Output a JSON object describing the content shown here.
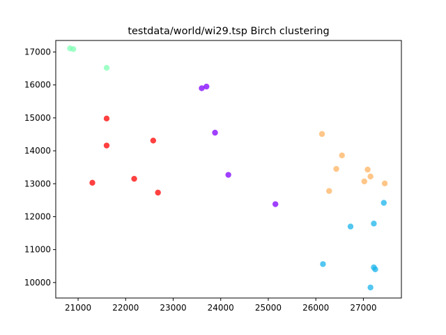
{
  "chart_data": {
    "type": "scatter",
    "title": "testdata/world/wi29.tsp Birch clustering",
    "xlabel": "",
    "ylabel": "",
    "xlim": [
      20530,
      27800
    ],
    "ylim": [
      9530,
      17350
    ],
    "x_ticks": [
      21000,
      22000,
      23000,
      24000,
      25000,
      26000,
      27000
    ],
    "x_tick_labels": [
      "21000",
      "22000",
      "23000",
      "24000",
      "25000",
      "26000",
      "27000"
    ],
    "y_ticks": [
      10000,
      11000,
      12000,
      13000,
      14000,
      15000,
      16000,
      17000
    ],
    "y_tick_labels": [
      "10000",
      "11000",
      "12000",
      "13000",
      "14000",
      "15000",
      "16000",
      "17000"
    ],
    "grid": false,
    "legend": "none",
    "series": [
      {
        "color": "#8000ff",
        "points": [
          [
            23600,
            15900
          ],
          [
            23700,
            15950
          ],
          [
            23880,
            14550
          ],
          [
            24160,
            13270
          ],
          [
            25150,
            12380
          ]
        ]
      },
      {
        "color": "#ff0000",
        "points": [
          [
            21600,
            14980
          ],
          [
            21600,
            14160
          ],
          [
            22580,
            14310
          ],
          [
            21300,
            13030
          ],
          [
            22180,
            13150
          ],
          [
            22680,
            12730
          ]
        ]
      },
      {
        "color": "#80ffb4",
        "points": [
          [
            20830,
            17110
          ],
          [
            20900,
            17090
          ],
          [
            21600,
            16520
          ]
        ]
      },
      {
        "color": "#ffb360",
        "points": [
          [
            26130,
            14510
          ],
          [
            26550,
            13860
          ],
          [
            26430,
            13450
          ],
          [
            27090,
            13430
          ],
          [
            27150,
            13220
          ],
          [
            27020,
            13070
          ],
          [
            27450,
            13010
          ],
          [
            26280,
            12780
          ]
        ]
      },
      {
        "color": "#1ab4eb",
        "points": [
          [
            27430,
            12420
          ],
          [
            27220,
            11790
          ],
          [
            26730,
            11700
          ],
          [
            26150,
            10560
          ],
          [
            27220,
            10460
          ],
          [
            27250,
            10400
          ],
          [
            27150,
            9850
          ]
        ]
      }
    ]
  }
}
